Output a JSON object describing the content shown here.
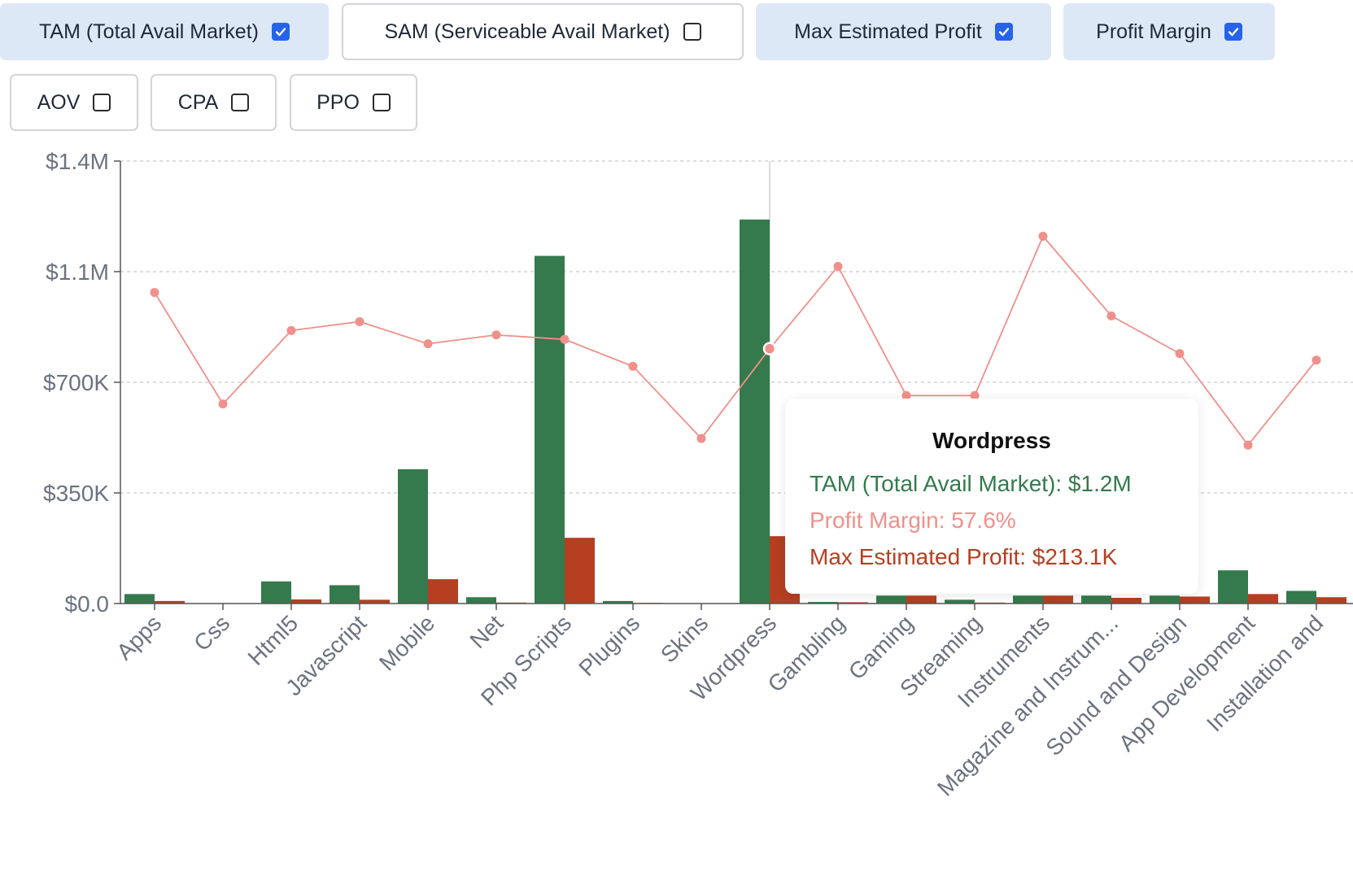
{
  "toggles": [
    {
      "label": "TAM (Total Avail Market)",
      "checked": true
    },
    {
      "label": "SAM (Serviceable Avail Market)",
      "checked": false
    },
    {
      "label": "Max Estimated Profit",
      "checked": true
    },
    {
      "label": "Profit Margin",
      "checked": true
    },
    {
      "label": "AOV",
      "checked": false
    },
    {
      "label": "CPA",
      "checked": false
    },
    {
      "label": "PPO",
      "checked": false
    }
  ],
  "colors": {
    "tam": "#347a4d",
    "profit": "#b53f20",
    "margin": "#f0908b",
    "checkbox": "#2563eb",
    "toggle_on_bg": "#dde8f7"
  },
  "chart_data": {
    "type": "bar",
    "categories": [
      "Apps",
      "Css",
      "Html5",
      "Javascript",
      "Mobile",
      "Net",
      "Php Scripts",
      "Plugins",
      "Skins",
      "Wordpress",
      "Gambling",
      "Gaming",
      "Streaming",
      "Instruments",
      "Magazine and Instrum...",
      "Sound and Design",
      "App Development",
      "Installation and"
    ],
    "series": [
      {
        "name": "TAM (Total Avail Market)",
        "kind": "bar",
        "values": [
          30000,
          0,
          70000,
          58000,
          425000,
          20000,
          1100000,
          8000,
          1000,
          1215000,
          5000,
          25000,
          12000,
          25000,
          25000,
          25000,
          105000,
          40000
        ]
      },
      {
        "name": "Max Estimated Profit",
        "kind": "bar",
        "values": [
          8000,
          0,
          13000,
          12000,
          77000,
          3000,
          208000,
          2000,
          200,
          213100,
          4000,
          25000,
          3000,
          25000,
          18000,
          22000,
          30000,
          20000
        ]
      },
      {
        "name": "Profit Margin",
        "kind": "line",
        "values": [
          70.3,
          45.1,
          61.7,
          63.7,
          58.7,
          60.7,
          59.7,
          53.6,
          37.3,
          57.6,
          76.2,
          47,
          47,
          83,
          65,
          56.5,
          35.8,
          55
        ]
      }
    ],
    "ylim": [
      0,
      1400000
    ],
    "y_ticks": [
      "$0.0",
      "$350K",
      "$700K",
      "$1.1M",
      "$1.4M"
    ],
    "margin_range": [
      0,
      100
    ],
    "grid": true,
    "hover_index": 9,
    "tooltip": {
      "title": "Wordpress",
      "lines": [
        {
          "text": "TAM (Total Avail Market): $1.2M",
          "color": "#347a4d"
        },
        {
          "text": "Profit Margin: 57.6%",
          "color": "#f0908b"
        },
        {
          "text": "Max Estimated Profit: $213.1K",
          "color": "#b53f20"
        }
      ]
    }
  }
}
